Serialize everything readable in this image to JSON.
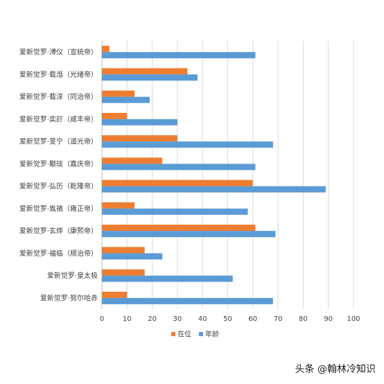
{
  "chart_data": {
    "type": "bar",
    "orientation": "horizontal",
    "categories": [
      "爱新觉罗·溥仪（宣统帝）",
      "爱新觉罗·载湉（光绪帝）",
      "爱新觉罗·载淳（同治帝）",
      "爱新觉罗·奕詝（咸丰帝）",
      "爱新觉罗·旻宁（道光帝）",
      "爱新觉罗·颙琰（嘉庆帝）",
      "爱新觉罗·弘历（乾隆帝）",
      "爱新觉罗·胤禛（雍正帝）",
      "爱新觉罗·玄烨（康熙帝）",
      "爱新觉罗·福临（顺治帝）",
      "爱新觉罗·皇太极",
      "爱新觉罗·努尔哈赤"
    ],
    "series": [
      {
        "name": "在位",
        "color": "#ED7D31",
        "values": [
          3,
          34,
          13,
          10,
          30,
          24,
          60,
          13,
          61,
          17,
          17,
          10
        ]
      },
      {
        "name": "年龄",
        "color": "#5B9BD5",
        "values": [
          61,
          38,
          19,
          30,
          68,
          61,
          89,
          58,
          69,
          24,
          52,
          68
        ]
      }
    ],
    "x_ticks": [
      "0",
      "10",
      "20",
      "30",
      "40",
      "50",
      "60",
      "70",
      "80",
      "90",
      "100"
    ],
    "xlim": [
      0,
      100
    ],
    "grid": true,
    "legend_position": "bottom"
  },
  "watermark": "头条 @翰林冷知识"
}
